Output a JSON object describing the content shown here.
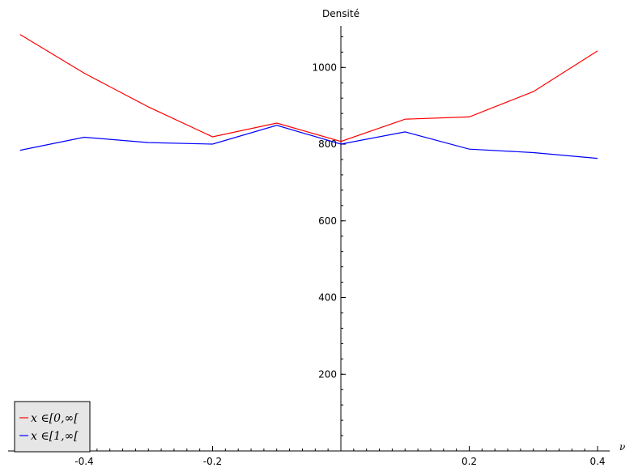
{
  "chart_data": {
    "type": "line",
    "title": "",
    "xlabel": "ν",
    "ylabel": "Densité",
    "xlim": [
      -0.5,
      0.4
    ],
    "ylim": [
      0,
      1100
    ],
    "x": [
      -0.5,
      -0.4,
      -0.3,
      -0.2,
      -0.1,
      0.0,
      0.1,
      0.2,
      0.3,
      0.4
    ],
    "xticks": [
      "-0.4",
      "-0.2",
      "0.2",
      "0.4"
    ],
    "yticks": [
      "200",
      "400",
      "600",
      "800",
      "1000"
    ],
    "grid": false,
    "legend_position": "bottom-left",
    "series": [
      {
        "name": "x ∈[0,∞[",
        "color": "#ff0000",
        "values": [
          1086,
          985,
          897,
          819,
          855,
          807,
          865,
          871,
          937,
          1043
        ]
      },
      {
        "name": "x ∈[1,∞[",
        "color": "#0000ff",
        "values": [
          784,
          818,
          804,
          800,
          849,
          800,
          832,
          787,
          778,
          763
        ]
      }
    ]
  }
}
